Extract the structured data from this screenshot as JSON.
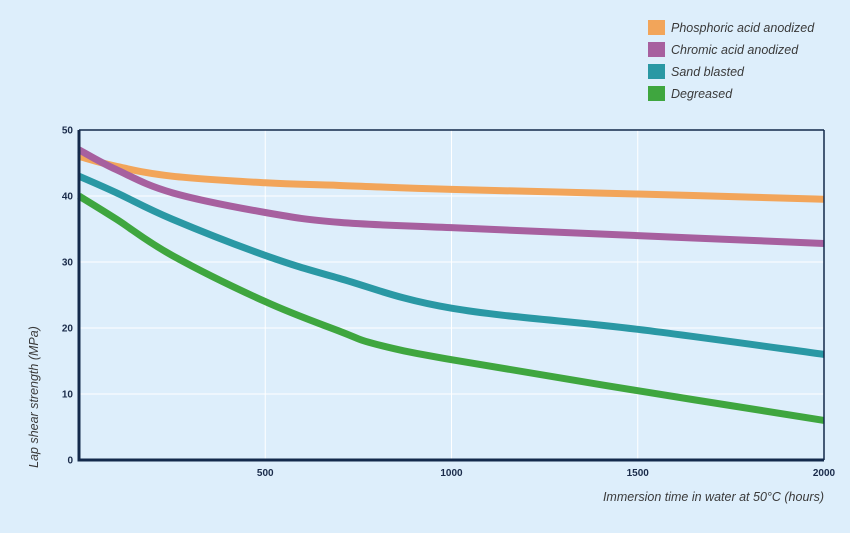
{
  "chart_data": {
    "type": "line",
    "title": "",
    "xlabel": "Immersion time in water at 50°C (hours)",
    "ylabel": "Lap shear strength (MPa)",
    "xlim": [
      0,
      2000
    ],
    "ylim": [
      0,
      50
    ],
    "x_ticks": [
      500,
      1000,
      1500,
      2000
    ],
    "y_ticks": [
      0,
      10,
      20,
      30,
      40,
      50
    ],
    "grid": true,
    "legend_position": "top-right",
    "series": [
      {
        "name": "Phosphoric acid anodized",
        "color": "#f2a55a",
        "x": [
          0,
          100,
          250,
          500,
          700,
          1000,
          1500,
          2000
        ],
        "y": [
          46,
          44.5,
          43,
          42,
          41.6,
          41,
          40.3,
          39.5
        ]
      },
      {
        "name": "Chromic acid anodized",
        "color": "#a7609f",
        "x": [
          0,
          100,
          250,
          500,
          700,
          1000,
          1500,
          2000
        ],
        "y": [
          47,
          44,
          40.5,
          37.5,
          36,
          35.2,
          34,
          32.8
        ]
      },
      {
        "name": "Sand blasted",
        "color": "#2a98a4",
        "x": [
          0,
          100,
          250,
          500,
          700,
          1000,
          1500,
          2000
        ],
        "y": [
          43,
          40.5,
          36.5,
          31,
          27.5,
          23,
          19.8,
          16
        ]
      },
      {
        "name": "Degreased",
        "color": "#3fa63f",
        "x": [
          0,
          100,
          250,
          500,
          700,
          800,
          1000,
          1500,
          2000
        ],
        "y": [
          40,
          36.5,
          31,
          24,
          19.5,
          17.5,
          15.2,
          10.5,
          6
        ]
      }
    ]
  }
}
